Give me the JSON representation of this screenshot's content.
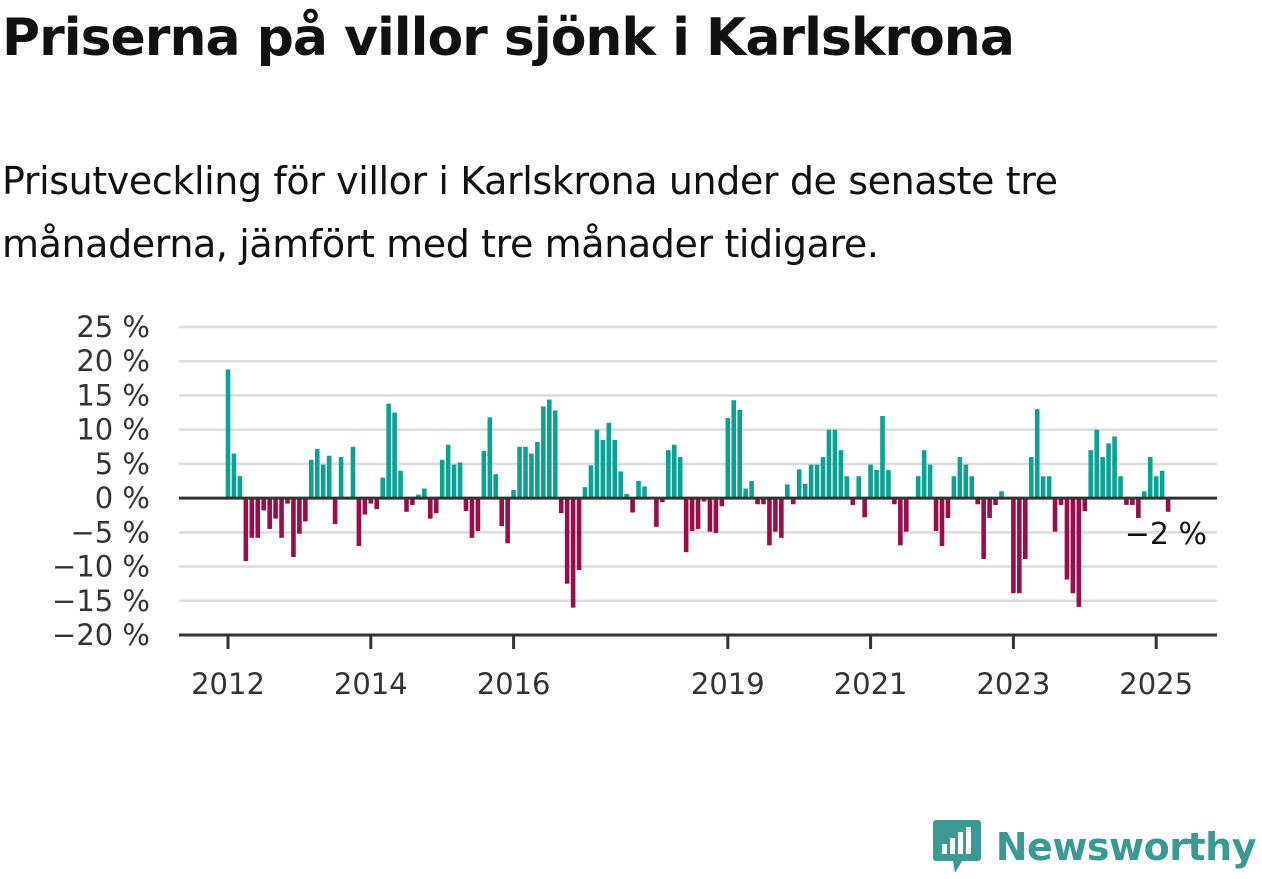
{
  "title": "Priserna på villor sjönk i Karlskrona",
  "subtitle": "Prisutveckling för villor i Karlskrona under de senaste tre månaderna, jämfört med tre månader tidigare.",
  "brand": {
    "name": "Newsworthy",
    "icon": "newsworthy-logo-icon",
    "color": "#3a9a93"
  },
  "colors": {
    "positive": "#0aa294",
    "negative": "#9b0c4b",
    "grid": "#dcdcdc",
    "zero_line": "#333333"
  },
  "chart_data": {
    "type": "bar",
    "x_start": "2012-01",
    "x_interval": "month",
    "ylabel": "",
    "xlabel": "",
    "ylim": [
      -20,
      25
    ],
    "yticks": [
      25,
      20,
      15,
      10,
      5,
      0,
      -5,
      -10,
      -15,
      -20
    ],
    "ytick_labels": [
      "25 %",
      "20 %",
      "15 %",
      "10 %",
      "5 %",
      "0 %",
      "−5 %",
      "−10 %",
      "−15 %",
      "−20 %"
    ],
    "xticks": [
      "2012-01",
      "2014-01",
      "2016-01",
      "2019-01",
      "2021-01",
      "2023-01",
      "2025-01"
    ],
    "xtick_labels": [
      "2012",
      "2014",
      "2016",
      "2019",
      "2021",
      "2023",
      "2025"
    ],
    "grid": true,
    "last_value_label": "−2 %",
    "values": [
      18.8,
      6.5,
      3.2,
      -9.2,
      -5.8,
      -5.8,
      -1.8,
      -4.5,
      -3.0,
      -5.8,
      -0.8,
      -8.6,
      -5.2,
      -3.4,
      5.6,
      7.2,
      4.9,
      6.2,
      -3.8,
      6.0,
      0,
      7.5,
      -7.0,
      -2.4,
      -0.8,
      -1.6,
      3.0,
      13.8,
      12.5,
      4.0,
      -2.0,
      -1.0,
      0.5,
      1.4,
      -3.0,
      -2.2,
      5.6,
      7.8,
      4.9,
      5.2,
      -1.9,
      -5.8,
      -4.8,
      6.9,
      11.8,
      3.5,
      -4.1,
      -6.6,
      1.2,
      7.5,
      7.5,
      6.5,
      8.2,
      13.4,
      14.4,
      12.8,
      -2.2,
      -12.5,
      -16.0,
      -10.5,
      1.6,
      4.8,
      10.0,
      8.5,
      11.0,
      8.5,
      3.9,
      0.6,
      -2.1,
      2.5,
      1.7,
      0,
      -4.2,
      -0.6,
      7.0,
      7.8,
      6.0,
      -7.9,
      -4.8,
      -4.5,
      -0.5,
      -4.9,
      -5.1,
      -1.2,
      11.7,
      14.3,
      12.9,
      1.4,
      2.5,
      -0.9,
      -0.9,
      -6.9,
      -4.9,
      -5.8,
      2.0,
      -0.9,
      4.2,
      2.1,
      4.9,
      4.9,
      6.0,
      10.0,
      10.0,
      7.0,
      3.2,
      -1.0,
      3.2,
      -2.8,
      4.9,
      4.1,
      12.0,
      4.1,
      -0.9,
      -6.9,
      -4.9,
      0,
      3.2,
      7.0,
      4.9,
      -4.8,
      -7.0,
      -2.9,
      3.2,
      6.0,
      4.9,
      3.2,
      -0.9,
      -8.9,
      -2.9,
      -1.0,
      1.0,
      0,
      -13.9,
      -13.9,
      -8.9,
      6.0,
      13.0,
      3.2,
      3.2,
      -4.9,
      -1.0,
      -11.9,
      -13.9,
      -15.9,
      -1.9,
      7.0,
      10.0,
      6.0,
      8.0,
      9.0,
      3.2,
      -1.0,
      -1.0,
      -2.9,
      1.0,
      6.0,
      3.2,
      4.0,
      -2.0
    ]
  }
}
